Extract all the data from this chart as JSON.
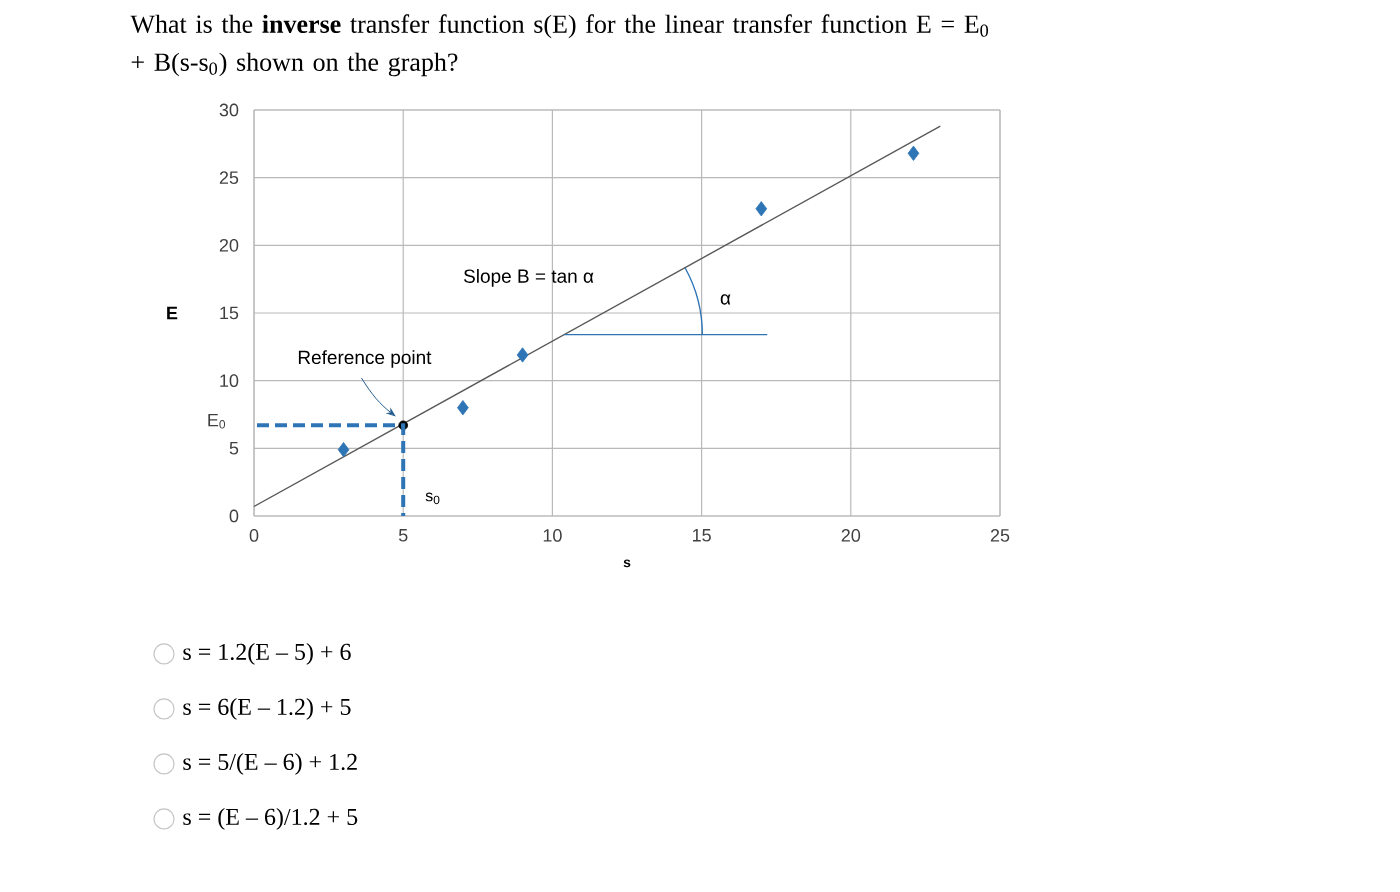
{
  "chart_data": {
    "type": "scatter",
    "title": "What is the **inverse** transfer function s(E) for the linear transfer function  E = E$_{0}$ + B(s-s$_{0}$) shown on the graph?",
    "xlabel": "s",
    "ylabel": "E",
    "xlim": [
      0,
      25
    ],
    "ylim": [
      0,
      30
    ],
    "xticks": [
      0,
      5,
      10,
      15,
      20,
      25
    ],
    "yticks": [
      0,
      5,
      10,
      15,
      20,
      25,
      30
    ],
    "grid": true,
    "series": [
      {
        "type": "scatter",
        "color": "#2e75b6",
        "marker": "diamond",
        "x": [
          3,
          7,
          9,
          17,
          22.1
        ],
        "values": [
          4.9,
          8,
          11.9,
          22.7,
          26.8
        ]
      },
      {
        "type": "line",
        "color": "#595959",
        "marker": "none",
        "x": [
          0,
          23
        ],
        "values": [
          0.7,
          28.8
        ]
      },
      {
        "type": "scatter",
        "color": "#000000",
        "marker": "circle",
        "x": [
          5
        ],
        "values": [
          6.7
        ]
      }
    ],
    "annotations": [
      {
        "text": "Reference point",
        "x": 5,
        "y": 6.7
      },
      "s$_{0}$",
      "E$_{0}$",
      "Slope B = tan α",
      "α",
      "s = 1.2(E – 5) + 6",
      "s = 6(E – 1.2) + 5",
      "s = 5/(E – 6) + 1.2",
      "s = (E – 6)/1.2 + 5"
    ]
  }
}
